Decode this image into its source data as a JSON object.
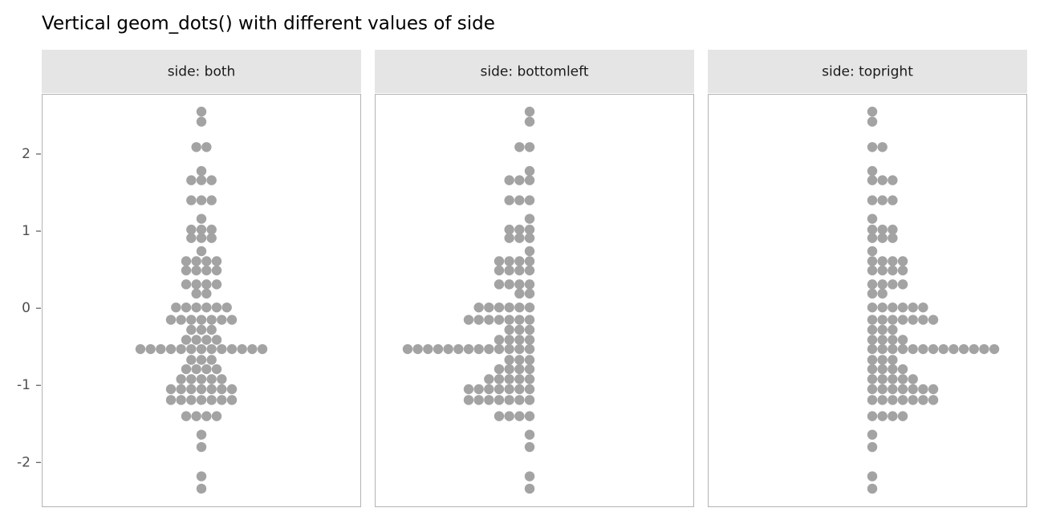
{
  "chart_data": {
    "type": "dots",
    "title": "Vertical geom_dots() with different values of side",
    "facets": [
      {
        "label": "side: both",
        "side": "both"
      },
      {
        "label": "side: bottomleft",
        "side": "bottomleft"
      },
      {
        "label": "side: topright",
        "side": "topright"
      }
    ],
    "bins": {
      "y": [
        2.55,
        2.42,
        2.09,
        1.78,
        1.66,
        1.4,
        1.16,
        1.02,
        0.91,
        0.74,
        0.61,
        0.49,
        0.31,
        0.19,
        0.01,
        -0.15,
        -0.28,
        -0.41,
        -0.53,
        -0.67,
        -0.79,
        -0.92,
        -1.05,
        -1.19,
        -1.4,
        -1.64,
        -1.8,
        -2.18,
        -2.34
      ],
      "counts": [
        1,
        1,
        2,
        1,
        3,
        3,
        1,
        3,
        3,
        1,
        4,
        4,
        4,
        2,
        6,
        7,
        3,
        4,
        13,
        3,
        4,
        5,
        7,
        7,
        4,
        1,
        1,
        1,
        1
      ]
    },
    "color": "#a3a3a3",
    "ylim": [
      -2.58,
      2.78
    ],
    "yticks": [
      -2,
      -1,
      0,
      1,
      2
    ]
  }
}
